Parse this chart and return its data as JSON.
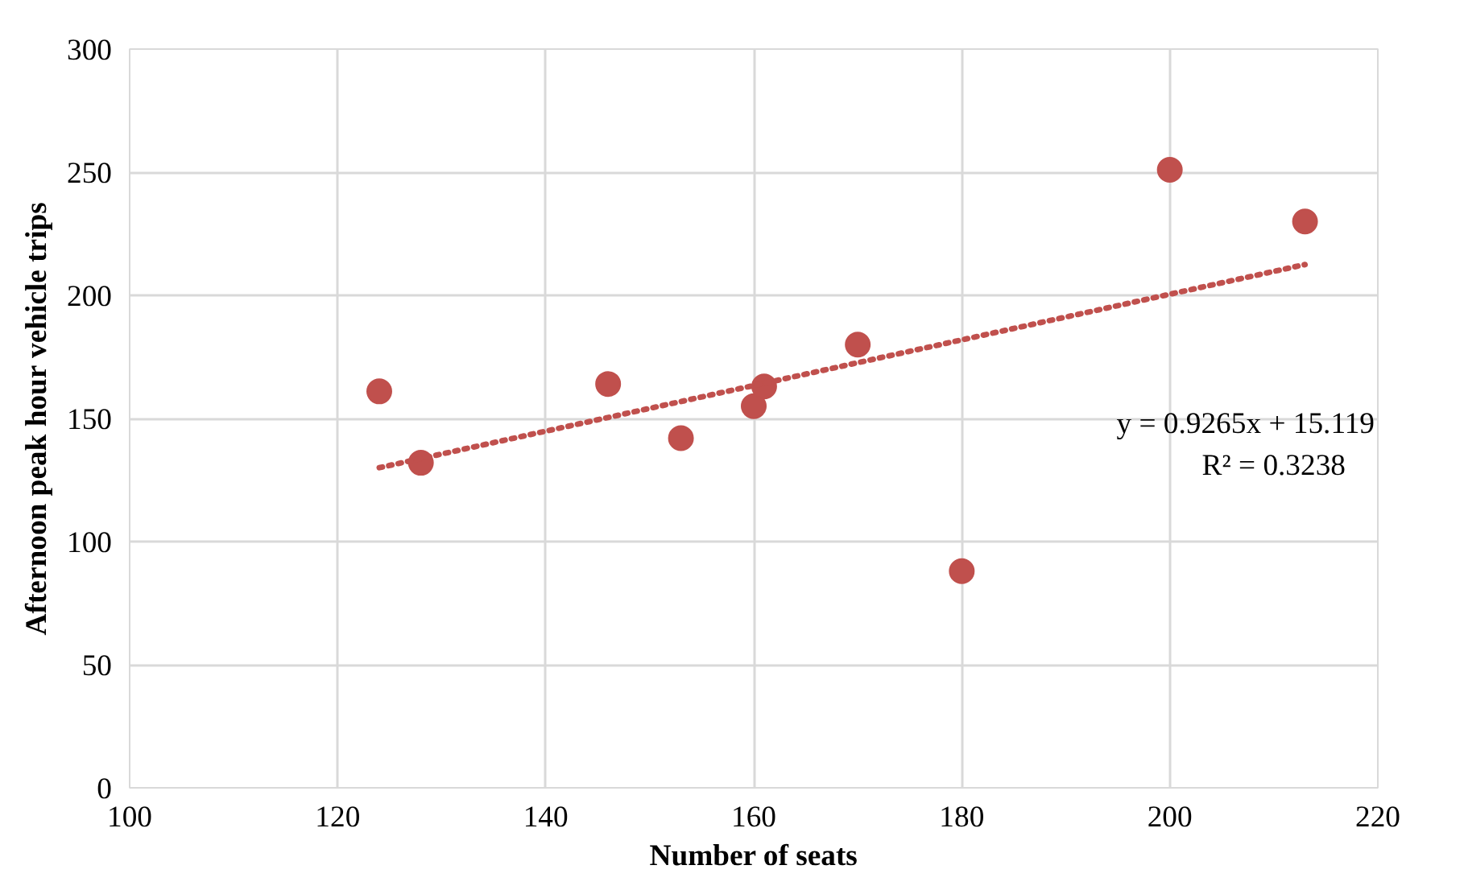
{
  "chart_data": {
    "type": "scatter",
    "xlabel": "Number of seats",
    "ylabel": "Afternoon peak hour vehicle trips",
    "x": [
      124,
      128,
      146,
      153,
      160,
      161,
      170,
      180,
      200,
      213
    ],
    "series": [
      {
        "color": "#c0504d",
        "marker": "circle",
        "values": [
          161,
          132,
          164,
          142,
          155,
          163,
          180,
          88,
          251,
          230
        ]
      },
      {
        "type": "line",
        "color": "#c0504d",
        "line_style": "dotted",
        "marker": "none",
        "x": [
          124,
          213
        ],
        "values": [
          130.0,
          212.5
        ]
      }
    ],
    "annotations": [
      "y = 0.9265x + 15.119",
      "R² = 0.3238"
    ],
    "xlim": [
      100,
      220
    ],
    "xticks": [
      100,
      120,
      140,
      160,
      180,
      200,
      220
    ],
    "ylim": [
      0,
      300
    ],
    "yticks": [
      0,
      50,
      100,
      150,
      200,
      250,
      300
    ],
    "grid": true
  }
}
